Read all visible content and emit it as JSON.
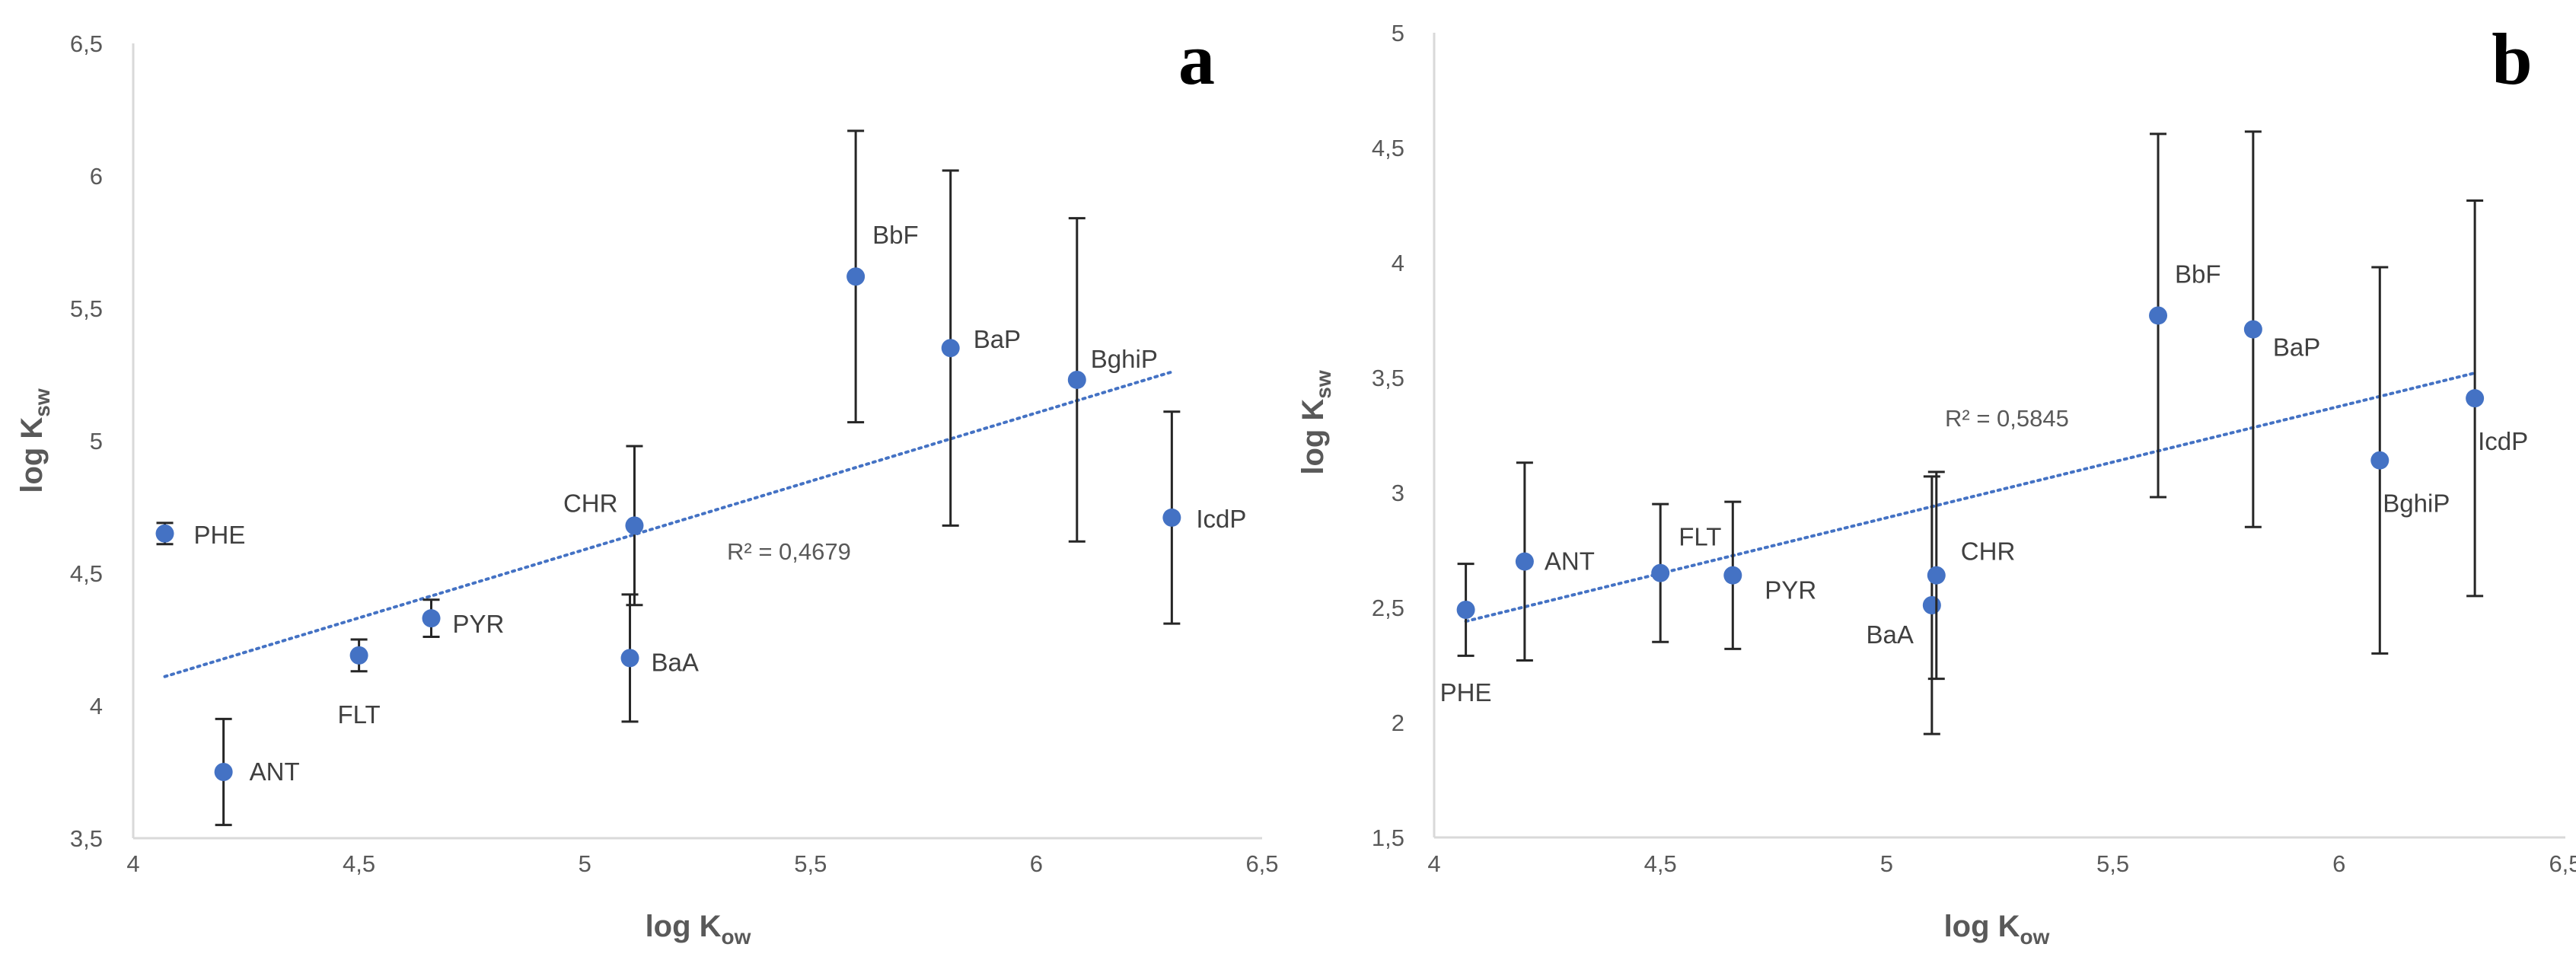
{
  "colors": {
    "marker": "#4472c4",
    "trendline": "#4472c4",
    "errorbar": "#262626",
    "axis": "#d9d9d9",
    "text": "#595959"
  },
  "chart_data": [
    {
      "type": "scatter",
      "panel_label": "a",
      "xlabel": {
        "main": "log K",
        "sub": "ow"
      },
      "ylabel": {
        "main": "log K",
        "sub": "sw"
      },
      "xlim": [
        4,
        6.5
      ],
      "ylim": [
        3.5,
        6.5
      ],
      "xticks": [
        "4",
        "4,5",
        "5",
        "5,5",
        "6",
        "6,5"
      ],
      "xtick_values": [
        4,
        4.5,
        5,
        5.5,
        6,
        6.5
      ],
      "yticks": [
        "3,5",
        "4",
        "4,5",
        "5",
        "5,5",
        "6",
        "6,5"
      ],
      "ytick_values": [
        3.5,
        4,
        4.5,
        5,
        5.5,
        6,
        6.5
      ],
      "grid": false,
      "points": [
        {
          "label": "PHE",
          "x": 4.07,
          "y": 4.65,
          "err": 0.04
        },
        {
          "label": "ANT",
          "x": 4.2,
          "y": 3.75,
          "err": 0.2
        },
        {
          "label": "FLT",
          "x": 4.5,
          "y": 4.19,
          "err": 0.06
        },
        {
          "label": "PYR",
          "x": 4.66,
          "y": 4.33,
          "err": 0.07
        },
        {
          "label": "BaA",
          "x": 5.1,
          "y": 4.18,
          "err": 0.24
        },
        {
          "label": "CHR",
          "x": 5.11,
          "y": 4.68,
          "err": 0.3
        },
        {
          "label": "BbF",
          "x": 5.6,
          "y": 5.62,
          "err": 0.55
        },
        {
          "label": "BaP",
          "x": 5.81,
          "y": 5.35,
          "err": 0.67
        },
        {
          "label": "BghiP",
          "x": 6.09,
          "y": 5.23,
          "err": 0.61
        },
        {
          "label": "IcdP",
          "x": 6.3,
          "y": 4.71,
          "err": 0.4
        }
      ],
      "trendline": {
        "x": [
          4.07,
          6.3
        ],
        "y": [
          4.11,
          5.26
        ]
      },
      "r2_text": "R² = 0,4679"
    },
    {
      "type": "scatter",
      "panel_label": "b",
      "xlabel": {
        "main": "log K",
        "sub": "ow"
      },
      "ylabel": {
        "main": "log K",
        "sub": "sw"
      },
      "xlim": [
        4,
        6.5
      ],
      "ylim": [
        1.5,
        5
      ],
      "xticks": [
        "4",
        "4,5",
        "5",
        "5,5",
        "6",
        "6,5"
      ],
      "xtick_values": [
        4,
        4.5,
        5,
        5.5,
        6,
        6.5
      ],
      "yticks": [
        "1,5",
        "2",
        "2,5",
        "3",
        "3,5",
        "4",
        "4,5",
        "5"
      ],
      "ytick_values": [
        1.5,
        2,
        2.5,
        3,
        3.5,
        4,
        4.5,
        5
      ],
      "grid": false,
      "points": [
        {
          "label": "PHE",
          "x": 4.07,
          "y": 2.49,
          "err": 0.2
        },
        {
          "label": "ANT",
          "x": 4.2,
          "y": 2.7,
          "err": 0.43
        },
        {
          "label": "FLT",
          "x": 4.5,
          "y": 2.65,
          "err": 0.3
        },
        {
          "label": "PYR",
          "x": 4.66,
          "y": 2.64,
          "err": 0.32
        },
        {
          "label": "BaA",
          "x": 5.1,
          "y": 2.51,
          "err": 0.56
        },
        {
          "label": "CHR",
          "x": 5.11,
          "y": 2.64,
          "err": 0.45
        },
        {
          "label": "BbF",
          "x": 5.6,
          "y": 3.77,
          "err": 0.79
        },
        {
          "label": "BaP",
          "x": 5.81,
          "y": 3.71,
          "err": 0.86
        },
        {
          "label": "BghiP",
          "x": 6.09,
          "y": 3.14,
          "err": 0.84
        },
        {
          "label": "IcdP",
          "x": 6.3,
          "y": 3.41,
          "err": 0.86
        }
      ],
      "trendline": {
        "x": [
          4.07,
          6.3
        ],
        "y": [
          2.44,
          3.52
        ]
      },
      "r2_text": "R² = 0,5845"
    }
  ]
}
